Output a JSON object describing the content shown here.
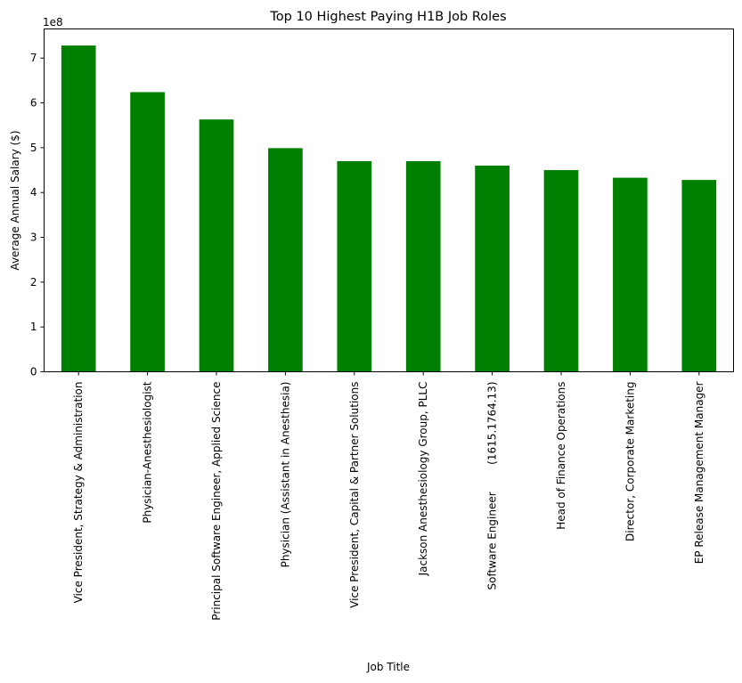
{
  "chart_data": {
    "type": "bar",
    "title": "Top 10 Highest Paying H1B Job Roles",
    "xlabel": "Job Title",
    "ylabel": "Average Annual Salary ($)",
    "y_scale_label": "1e8",
    "ylim": [
      0,
      7.65
    ],
    "yticks": [
      0,
      1,
      2,
      3,
      4,
      5,
      6,
      7
    ],
    "grid": false,
    "bar_color": "#008000",
    "categories": [
      "Vice President, Strategy & Administration",
      "Physician-Anesthesiologist",
      "Principal Software Engineer, Applied Science",
      "Physician (Assistant in Anesthesia)",
      "Vice President, Capital & Partner Solutions",
      "Jackson Anesthesiology Group, PLLC",
      "Software Engineer        (1615.1764.13)",
      "Head of Finance Operations",
      "Director, Corporate Marketing",
      "EP Release Management Manager"
    ],
    "values": [
      7.28,
      6.24,
      5.63,
      4.99,
      4.7,
      4.7,
      4.6,
      4.5,
      4.33,
      4.28
    ]
  }
}
